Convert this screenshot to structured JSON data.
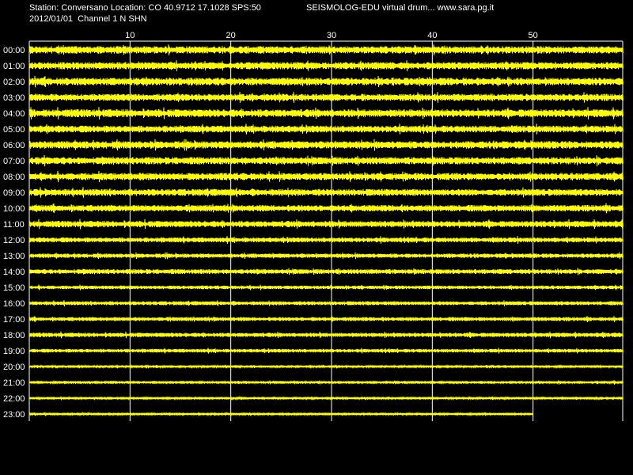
{
  "header": {
    "station_line": "Station: Conversano Location: CO 40.9712 17.1028 SPS:50",
    "program_line": "SEISMOLOG-EDU virtual drum... www.sara.pg.it",
    "channel_line": "2012/01/01  Channel 1 N SHN"
  },
  "colors": {
    "background": "#000000",
    "trace": "#ffff00",
    "grid": "#ffffff",
    "text": "#ffffff"
  },
  "chart_data": {
    "type": "line",
    "title": "",
    "xlabel": "",
    "ylabel": "",
    "xlim": [
      0,
      58.9
    ],
    "x_ticks": [
      10,
      20,
      30,
      40,
      50
    ],
    "x_tick_labels": [
      "10",
      "20",
      "30",
      "40",
      "50"
    ],
    "grid": true,
    "categories": [
      "00:00",
      "01:00",
      "02:00",
      "03:00",
      "04:00",
      "05:00",
      "06:00",
      "07:00",
      "08:00",
      "09:00",
      "10:00",
      "11:00",
      "12:00",
      "13:00",
      "14:00",
      "15:00",
      "16:00",
      "17:00",
      "18:00",
      "19:00",
      "20:00",
      "21:00",
      "22:00",
      "23:00"
    ],
    "series_end_minute": [
      60,
      60,
      60,
      60,
      60,
      60,
      60,
      60,
      60,
      60,
      60,
      60,
      60,
      60,
      60,
      60,
      60,
      60,
      60,
      60,
      60,
      60,
      60,
      50
    ],
    "relative_amplitude": [
      0.95,
      0.92,
      0.95,
      0.88,
      1.0,
      0.85,
      0.95,
      0.92,
      0.9,
      0.85,
      0.82,
      0.8,
      0.6,
      0.55,
      0.6,
      0.45,
      0.5,
      0.5,
      0.55,
      0.45,
      0.3,
      0.35,
      0.3,
      0.3
    ]
  }
}
